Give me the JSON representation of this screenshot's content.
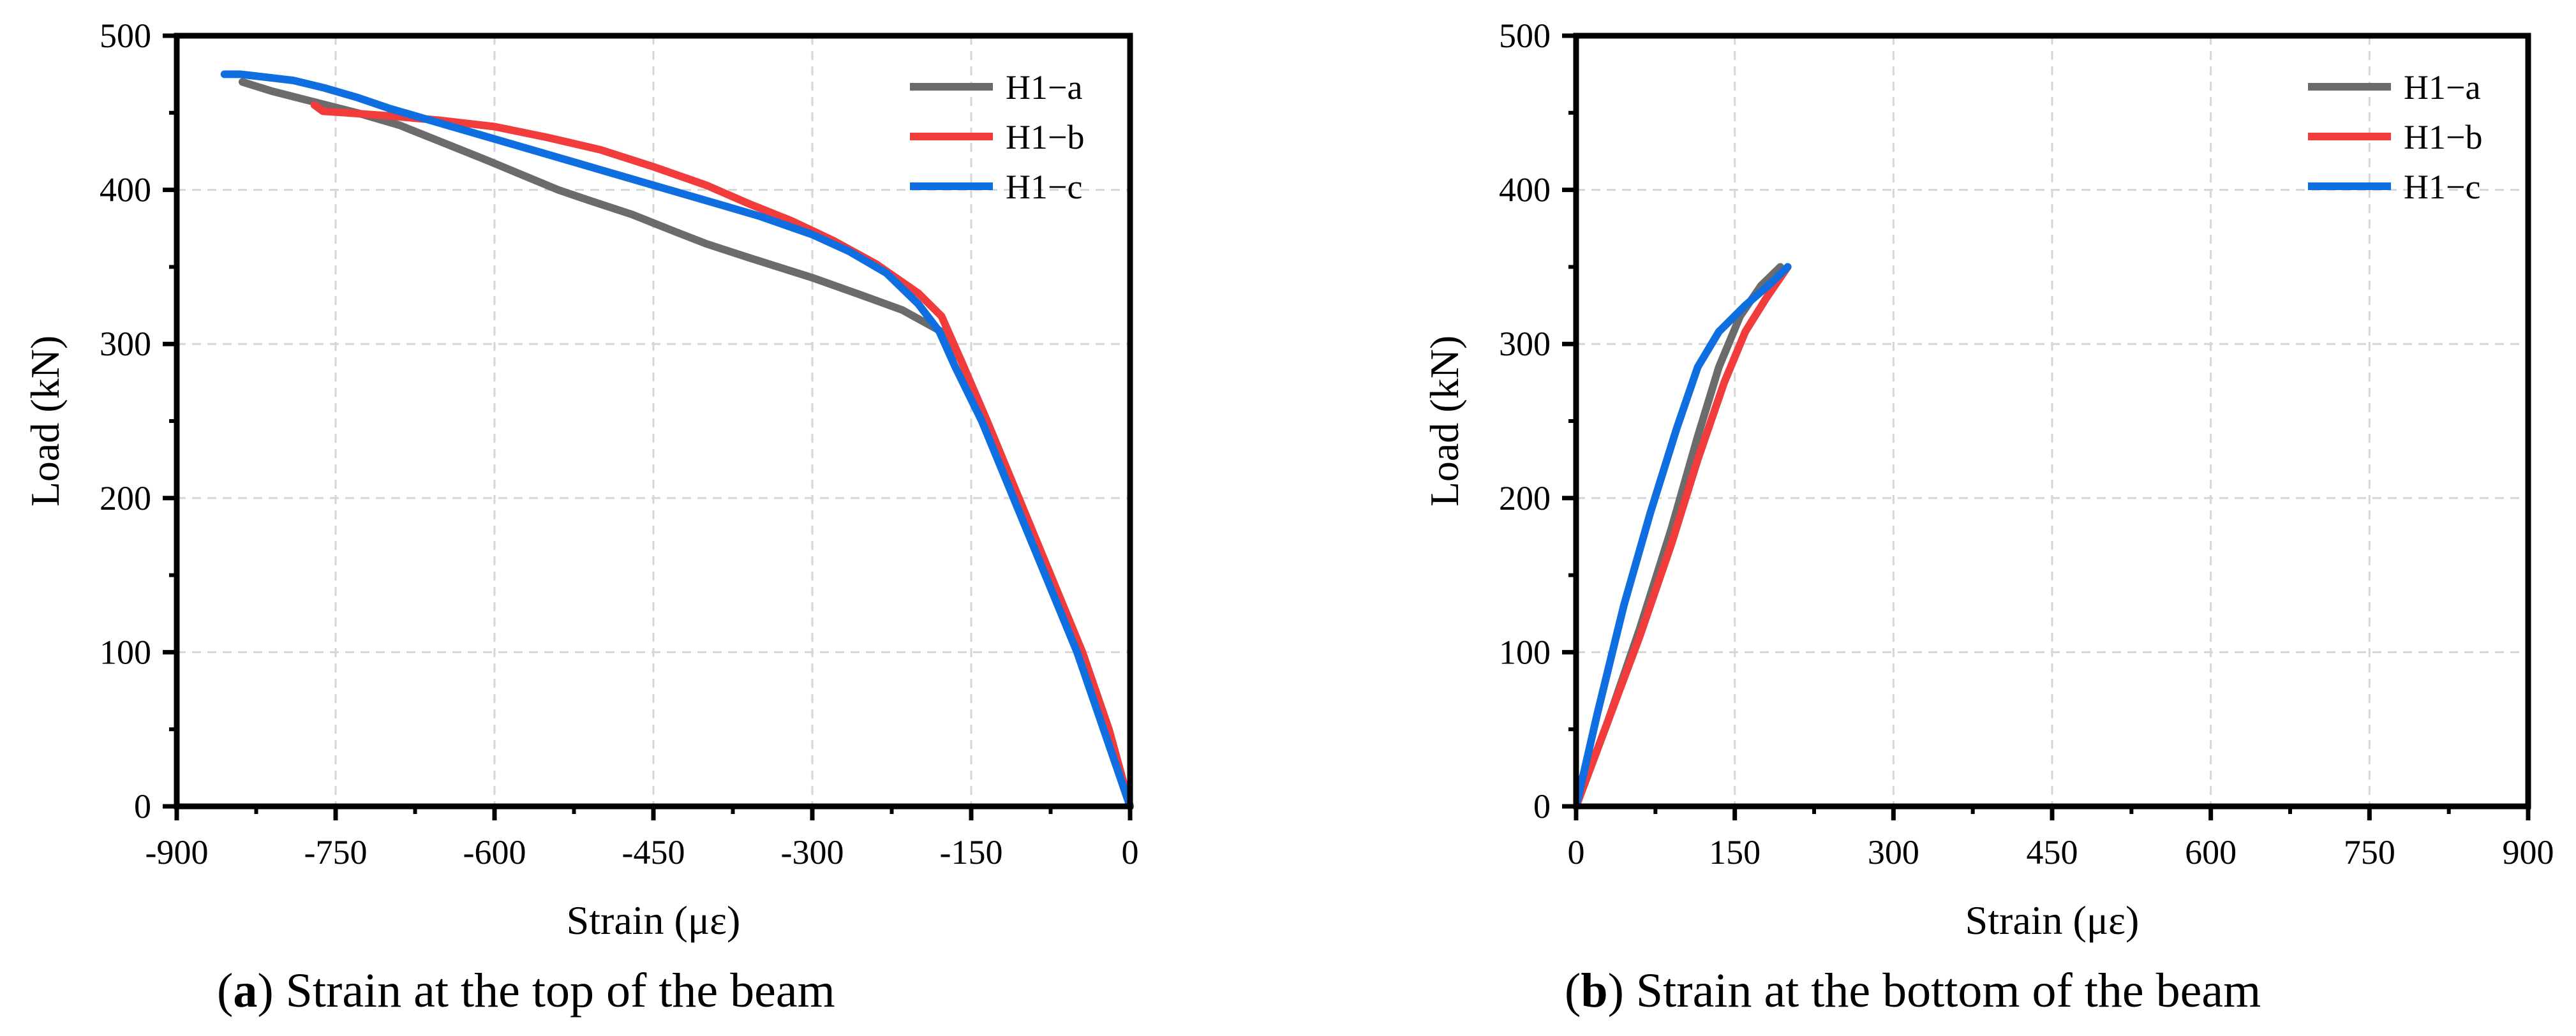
{
  "colors": {
    "H1-a": "#6b6b6b",
    "H1-b": "#f23b3b",
    "H1-c": "#0f6fe0",
    "axis": "#000000",
    "grid": "#d6d6d6"
  },
  "chart_data": [
    {
      "type": "line",
      "caption": {
        "letter": "a",
        "text": "Strain at the top of the beam"
      },
      "xlabel": "Strain (με)",
      "ylabel": "Load (kN)",
      "xlim": [
        -900,
        0
      ],
      "ylim": [
        0,
        500
      ],
      "xticks": [
        -900,
        -750,
        -600,
        -450,
        -300,
        -150,
        0
      ],
      "xtick_labels": [
        "-900",
        "-750",
        "-600",
        "-450",
        "-300",
        "-150",
        "0"
      ],
      "yticks": [
        0,
        100,
        200,
        300,
        400,
        500
      ],
      "ytick_labels": [
        "0",
        "100",
        "200",
        "300",
        "400",
        "500"
      ],
      "grid": true,
      "legend": "top-right",
      "series": [
        {
          "name": "H1−a",
          "key": "H1-a",
          "x": [
            0,
            -20,
            -45,
            -75,
            -105,
            -135,
            -160,
            -178,
            -215,
            -255,
            -300,
            -360,
            -400,
            -430,
            -470,
            -510,
            -540,
            -575,
            -610,
            -650,
            -690,
            -730,
            -770,
            -810,
            -838
          ],
          "y": [
            0,
            50,
            100,
            150,
            200,
            250,
            290,
            308,
            322,
            332,
            343,
            356,
            365,
            373,
            384,
            393,
            400,
            410,
            420,
            431,
            442,
            450,
            457,
            464,
            470
          ]
        },
        {
          "name": "H1−b",
          "key": "H1-b",
          "x": [
            0,
            -20,
            -45,
            -75,
            -105,
            -135,
            -160,
            -178,
            -200,
            -240,
            -280,
            -320,
            -360,
            -400,
            -450,
            -500,
            -550,
            -600,
            -650,
            -700,
            -740,
            -762,
            -770
          ],
          "y": [
            0,
            50,
            100,
            150,
            200,
            250,
            290,
            318,
            333,
            352,
            367,
            380,
            391,
            403,
            415,
            426,
            434,
            441,
            445,
            448,
            450,
            451,
            455
          ]
        },
        {
          "name": "H1−c",
          "key": "H1-c",
          "x": [
            0,
            -25,
            -50,
            -80,
            -110,
            -140,
            -165,
            -180,
            -200,
            -230,
            -265,
            -300,
            -350,
            -400,
            -450,
            -500,
            -550,
            -600,
            -650,
            -700,
            -730,
            -760,
            -790,
            -815,
            -840,
            -855
          ],
          "y": [
            0,
            50,
            100,
            150,
            200,
            250,
            285,
            308,
            326,
            346,
            360,
            371,
            383,
            393,
            403,
            413,
            423,
            433,
            443,
            453,
            460,
            466,
            471,
            473,
            475,
            475
          ]
        }
      ]
    },
    {
      "type": "line",
      "caption": {
        "letter": "b",
        "text": "Strain at the bottom of the beam"
      },
      "xlabel": "Strain (με)",
      "ylabel": "Load (kN)",
      "xlim": [
        0,
        900
      ],
      "ylim": [
        0,
        500
      ],
      "xticks": [
        0,
        150,
        300,
        450,
        600,
        750,
        900
      ],
      "xtick_labels": [
        "0",
        "150",
        "300",
        "450",
        "600",
        "750",
        "900"
      ],
      "yticks": [
        0,
        100,
        200,
        300,
        400,
        500
      ],
      "ytick_labels": [
        "0",
        "100",
        "200",
        "300",
        "400",
        "500"
      ],
      "grid": true,
      "legend": "top-right",
      "series": [
        {
          "name": "H1−a",
          "key": "H1-a",
          "x": [
            0,
            30,
            60,
            90,
            115,
            135,
            155,
            175,
            193
          ],
          "y": [
            0,
            55,
            115,
            180,
            240,
            285,
            318,
            338,
            350
          ]
        },
        {
          "name": "H1−b",
          "key": "H1-b",
          "x": [
            0,
            30,
            60,
            90,
            115,
            140,
            160,
            180,
            200
          ],
          "y": [
            0,
            55,
            110,
            170,
            225,
            275,
            308,
            330,
            350
          ]
        },
        {
          "name": "H1−c",
          "key": "H1-c",
          "x": [
            0,
            20,
            45,
            70,
            95,
            115,
            135,
            160,
            185,
            200
          ],
          "y": [
            0,
            60,
            130,
            190,
            245,
            285,
            308,
            325,
            340,
            350
          ]
        }
      ]
    }
  ]
}
